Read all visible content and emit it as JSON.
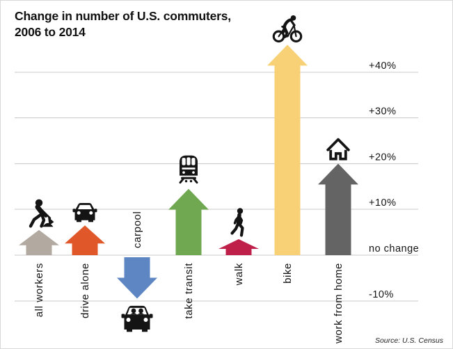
{
  "title": {
    "line1": "Change in number of U.S. commuters,",
    "line2": "2006 to 2014"
  },
  "source": "Source: U.S. Census",
  "chart_data": {
    "type": "bar",
    "bar_style": "arrow",
    "orientation": "vertical",
    "title": "Change in number of U.S. commuters, 2006 to 2014",
    "value_unit": "percent",
    "categories": [
      "all workers",
      "drive alone",
      "carpool",
      "take transit",
      "walk",
      "bike",
      "work from home"
    ],
    "values": [
      5.5,
      6.5,
      -9.5,
      14.5,
      3.5,
      46,
      20
    ],
    "bar_colors": [
      "#b2a9a1",
      "#e0582a",
      "#5d86c3",
      "#6fa851",
      "#bf2049",
      "#f8d177",
      "#646464"
    ],
    "icons": [
      "worker-digging-icon",
      "car-icon",
      "carpool-car-icon",
      "transit-trolley-icon",
      "walking-person-icon",
      "bicycle-rider-icon",
      "house-icon"
    ],
    "icon_color": "#141414",
    "y_axis": {
      "side": "right",
      "gridlines": true,
      "range": [
        -14,
        47
      ],
      "ticks": [
        {
          "value": 40,
          "label": "+40%"
        },
        {
          "value": 30,
          "label": "+30%"
        },
        {
          "value": 20,
          "label": "+20%"
        },
        {
          "value": 10,
          "label": "+10%"
        },
        {
          "value": 0,
          "label": "no change"
        },
        {
          "value": -10,
          "label": "-10%"
        }
      ]
    },
    "gridline_color": "#c9c9c9",
    "label_color": "#141414"
  }
}
